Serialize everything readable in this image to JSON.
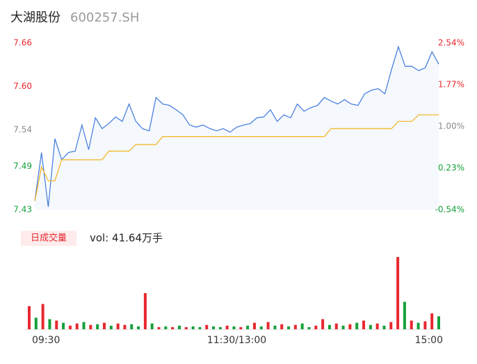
{
  "chart_data": [
    {
      "type": "line",
      "title": "大湖股份",
      "subtitle": "600257.SH",
      "ylim": [
        7.43,
        7.66
      ],
      "yticks": [
        7.66,
        {
          "value": 7.6,
          "label": "7.60"
        },
        7.54,
        7.49,
        7.43
      ],
      "y2lim": [
        -0.54,
        2.54
      ],
      "y2ticks": [
        {
          "value": 2.54,
          "label": "2.54%"
        },
        {
          "value": 1.77,
          "label": "1.77%"
        },
        {
          "value": 1.0,
          "label": "1.00%"
        },
        {
          "value": 0.23,
          "label": "0.23%"
        },
        {
          "value": -0.54,
          "label": "-0.54%"
        }
      ],
      "tick_colors": [
        "#e8282f",
        "#e8282f",
        "#8a8a8a",
        "#17a03c",
        "#17a03c"
      ],
      "categories": [
        "09:30",
        null,
        null,
        null,
        null,
        null,
        null,
        null,
        null,
        null,
        null,
        null,
        null,
        null,
        null,
        null,
        null,
        null,
        null,
        null,
        null,
        null,
        null,
        null,
        null,
        null,
        null,
        null,
        null,
        null,
        "11:30/13:00",
        null,
        null,
        null,
        null,
        null,
        null,
        null,
        null,
        null,
        null,
        null,
        null,
        null,
        null,
        null,
        null,
        null,
        null,
        null,
        null,
        null,
        null,
        null,
        null,
        null,
        null,
        null,
        null,
        null,
        "15:00"
      ],
      "series": [
        {
          "color": "#3d78dd",
          "values": [
            7.442,
            7.509,
            7.434,
            7.528,
            7.499,
            7.509,
            7.511,
            7.547,
            7.513,
            7.557,
            7.542,
            7.549,
            7.558,
            7.552,
            7.576,
            7.552,
            7.542,
            7.539,
            7.585,
            7.576,
            7.574,
            7.568,
            7.561,
            7.547,
            7.544,
            7.547,
            7.542,
            7.539,
            7.542,
            7.537,
            7.544,
            7.547,
            7.549,
            7.557,
            7.558,
            7.568,
            7.552,
            7.561,
            7.557,
            7.576,
            7.566,
            7.571,
            7.574,
            7.585,
            7.58,
            7.576,
            7.582,
            7.576,
            7.574,
            7.59,
            7.595,
            7.597,
            7.59,
            7.624,
            7.655,
            7.628,
            7.628,
            7.622,
            7.626,
            7.648,
            7.631
          ]
        },
        {
          "color": "#f2b418",
          "values": [
            7.442,
            7.489,
            7.47,
            7.47,
            7.499,
            7.499,
            7.499,
            7.499,
            7.499,
            7.499,
            7.499,
            7.511,
            7.511,
            7.511,
            7.511,
            7.52,
            7.52,
            7.52,
            7.52,
            7.531,
            7.531,
            7.531,
            7.531,
            7.531,
            7.531,
            7.531,
            7.531,
            7.531,
            7.531,
            7.531,
            7.531,
            7.531,
            7.531,
            7.531,
            7.531,
            7.531,
            7.531,
            7.531,
            7.531,
            7.531,
            7.531,
            7.531,
            7.531,
            7.531,
            7.542,
            7.542,
            7.542,
            7.542,
            7.542,
            7.542,
            7.542,
            7.542,
            7.542,
            7.542,
            7.552,
            7.552,
            7.552,
            7.561,
            7.561,
            7.561,
            7.561
          ]
        }
      ]
    },
    {
      "type": "bar",
      "label": "日成交量",
      "annotation": "vol: 41.64万手",
      "ylim": [
        0,
        100
      ],
      "values": [
        32,
        16,
        35,
        14,
        12,
        9,
        5,
        8,
        10,
        6,
        7,
        9,
        5,
        8,
        6,
        7,
        4,
        50,
        8,
        3,
        4,
        3,
        5,
        3,
        4,
        3,
        6,
        4,
        3,
        5,
        4,
        3,
        5,
        9,
        4,
        10,
        5,
        7,
        4,
        6,
        8,
        3,
        5,
        14,
        6,
        8,
        5,
        7,
        9,
        12,
        6,
        8,
        5,
        10,
        100,
        38,
        12,
        9,
        11,
        22,
        18
      ],
      "colors": [
        "#e8282f",
        "#17a03c",
        "#e8282f",
        "#17a03c",
        "#e8282f",
        "#17a03c",
        "#e8282f",
        "#e8282f",
        "#17a03c",
        "#e8282f",
        "#17a03c",
        "#e8282f",
        "#17a03c",
        "#e8282f",
        "#e8282f",
        "#17a03c",
        "#17a03c",
        "#e8282f",
        "#17a03c",
        "#e8282f",
        "#17a03c",
        "#e8282f",
        "#17a03c",
        "#e8282f",
        "#17a03c",
        "#17a03c",
        "#e8282f",
        "#17a03c",
        "#17a03c",
        "#e8282f",
        "#17a03c",
        "#e8282f",
        "#17a03c",
        "#e8282f",
        "#17a03c",
        "#e8282f",
        "#17a03c",
        "#e8282f",
        "#17a03c",
        "#e8282f",
        "#17a03c",
        "#17a03c",
        "#e8282f",
        "#e8282f",
        "#17a03c",
        "#e8282f",
        "#17a03c",
        "#e8282f",
        "#17a03c",
        "#e8282f",
        "#17a03c",
        "#e8282f",
        "#17a03c",
        "#e8282f",
        "#e8282f",
        "#17a03c",
        "#e8282f",
        "#17a03c",
        "#e8282f",
        "#e8282f",
        "#17a03c"
      ]
    }
  ]
}
